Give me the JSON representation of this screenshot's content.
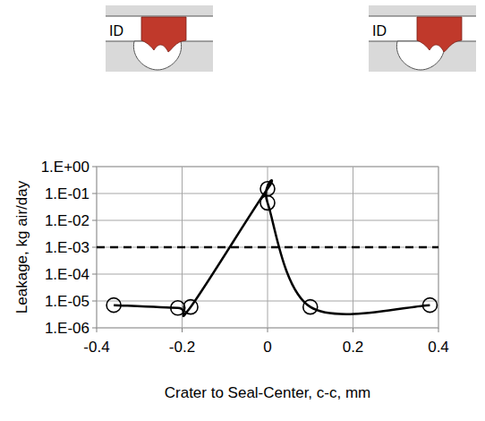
{
  "chart_data": {
    "type": "line",
    "x_label": "Crater to Seal-Center, c-c, mm",
    "y_label": "Leakage, kg air/day",
    "annotations": [
      "ID",
      "ID"
    ],
    "log": "y",
    "grid": true,
    "xlim": [
      -0.4,
      0.4
    ],
    "xticks": [
      -0.4,
      -0.2,
      0,
      0.2,
      0.4
    ],
    "ylim": [
      1e-06,
      1
    ],
    "yticks": [
      {
        "value": 1e-06,
        "label": "1.E-06"
      },
      {
        "value": 1e-05,
        "label": "1.E-05"
      },
      {
        "value": 0.0001,
        "label": "1.E-04"
      },
      {
        "value": 0.001,
        "label": "1.E-03"
      },
      {
        "value": 0.01,
        "label": "1.E-02"
      },
      {
        "value": 0.1,
        "label": "1.E-01"
      },
      {
        "value": 1,
        "label": "1.E+00"
      }
    ],
    "x": [
      -0.36,
      -0.21,
      -0.18,
      0,
      0,
      0.1,
      0.38
    ],
    "series": [
      {
        "color": "#000000",
        "marker": "circle",
        "line_style": "solid",
        "values": [
          7e-06,
          5.5e-06,
          6e-06,
          0.15,
          0.045,
          6e-06,
          7e-06
        ]
      }
    ],
    "reference_lines": [
      {
        "value": 0.001,
        "line_style": "dashed",
        "color": "#000000"
      }
    ]
  }
}
